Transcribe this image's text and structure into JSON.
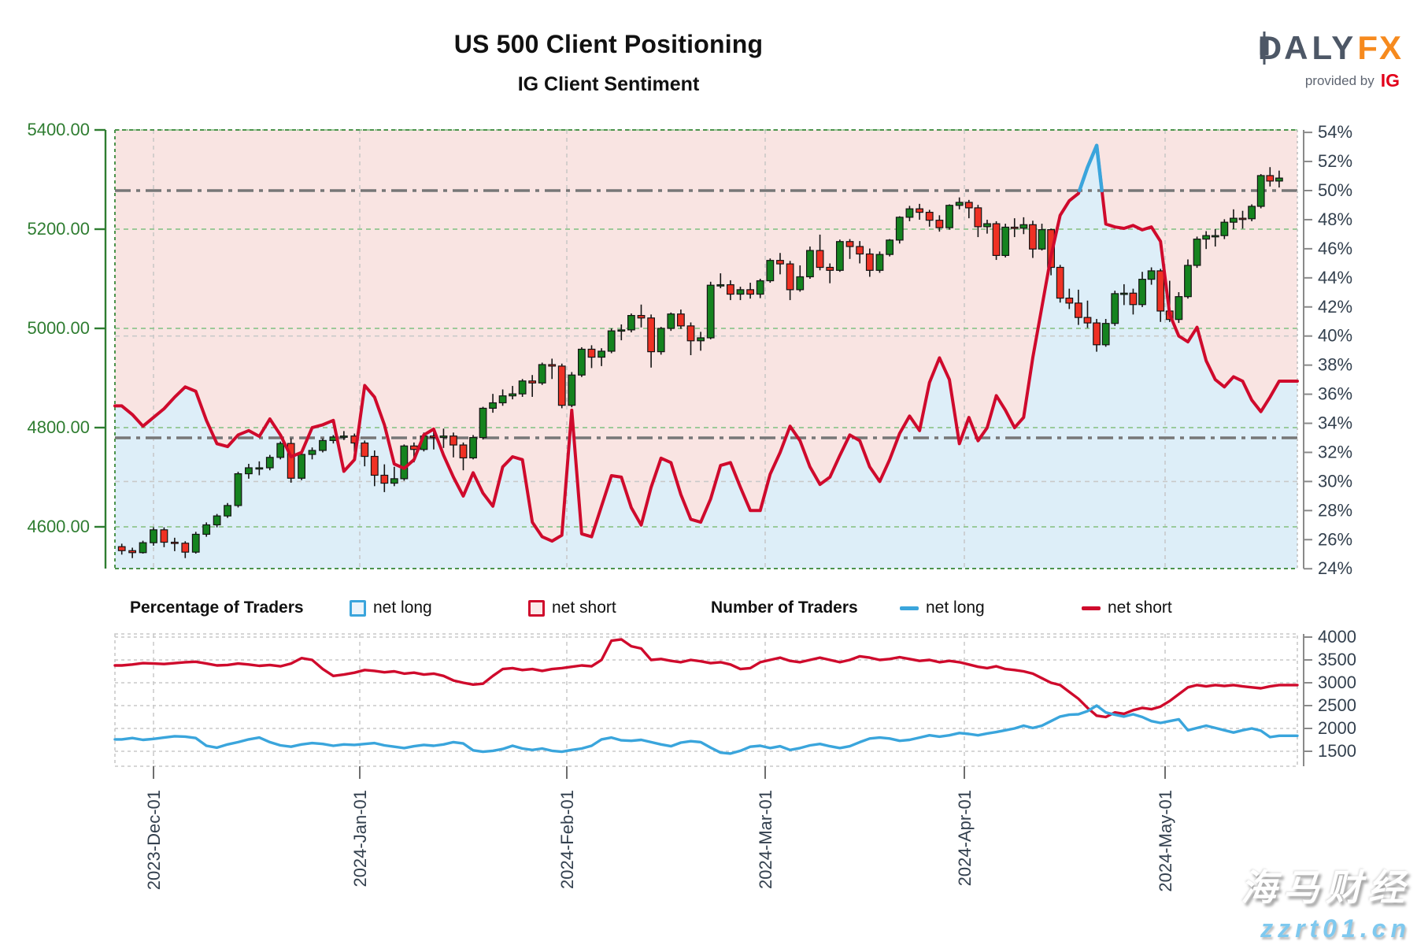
{
  "title": "US 500 Client Positioning",
  "subtitle": "IG Client Sentiment",
  "logo": {
    "brand_left": "DA",
    "brand_right": "LY",
    "brand_suffix": "FX",
    "provided_by": "provided by",
    "provider": "IG"
  },
  "legend": {
    "pct_header": "Percentage of Traders",
    "pct_net_long": "net long",
    "pct_net_short": "net short",
    "num_header": "Number of Traders",
    "num_net_long": "net long",
    "num_net_short": "net short"
  },
  "watermark": {
    "line1": "海马财经",
    "line2": "zzrt01.cn"
  },
  "colors": {
    "net_long_blue": "#3aa5dc",
    "net_short_red": "#cf0a2c",
    "candle_up": "#15831f",
    "candle_down": "#ef3124",
    "candle_stroke": "#141414",
    "price_axis_green": "#2f7d31",
    "grid_green": "#90c58f",
    "border_green": "#4c934c",
    "label_slate": "#33404e",
    "axis_gray": "#8a8a8a",
    "grid_light": "#c9c9c9",
    "refline_gray": "#777777",
    "fill_pink": "#f9e4e2",
    "fill_blue": "#ddeef8",
    "logo_orange": "#f68a1e",
    "logo_slate": "#4d5766",
    "ig_red": "#e2001a"
  },
  "chart_data": {
    "main": {
      "type": "candlestick+line",
      "title": "IG Client Sentiment",
      "price_axis": {
        "side": "left",
        "tick_values": [
          5400,
          5200,
          5000,
          4800,
          4600
        ],
        "tick_labels": [
          "5400.00",
          "5200.00",
          "5000.00",
          "4800.00",
          "4600.00"
        ],
        "range_top": 5400,
        "range_bottom": 4484
      },
      "pct_axis": {
        "side": "right",
        "tick_values": [
          54,
          52,
          50,
          48,
          46,
          44,
          42,
          40,
          38,
          36,
          34,
          32,
          30,
          28,
          26,
          24
        ],
        "tick_labels": [
          "54%",
          "52%",
          "50%",
          "48%",
          "46%",
          "44%",
          "42%",
          "40%",
          "38%",
          "36%",
          "34%",
          "32%",
          "30%",
          "28%",
          "26%",
          "24%"
        ],
        "reference_lines": [
          50,
          33
        ],
        "minor_lines": [
          40,
          30
        ],
        "threshold_pct": 50
      },
      "x_axis": {
        "month_labels": [
          "2023-Dec-01",
          "2024-Jan-01",
          "2024-Feb-01",
          "2024-Mar-01",
          "2024-Apr-01",
          "2024-May-01"
        ],
        "month_day_index": [
          3,
          22.5,
          43.5,
          63.5,
          83.5,
          105.5
        ]
      },
      "candles_ohlc": [
        [
          4560,
          4566,
          4544,
          4552
        ],
        [
          4552,
          4558,
          4537,
          4548
        ],
        [
          4548,
          4572,
          4546,
          4568
        ],
        [
          4568,
          4599,
          4562,
          4594
        ],
        [
          4594,
          4599,
          4559,
          4569
        ],
        [
          4569,
          4578,
          4551,
          4567
        ],
        [
          4567,
          4571,
          4537,
          4549
        ],
        [
          4549,
          4590,
          4546,
          4585
        ],
        [
          4585,
          4609,
          4580,
          4604
        ],
        [
          4604,
          4626,
          4599,
          4622
        ],
        [
          4622,
          4648,
          4618,
          4643
        ],
        [
          4643,
          4711,
          4639,
          4707
        ],
        [
          4707,
          4727,
          4697,
          4719
        ],
        [
          4719,
          4732,
          4704,
          4719
        ],
        [
          4719,
          4745,
          4714,
          4740
        ],
        [
          4740,
          4772,
          4736,
          4768
        ],
        [
          4768,
          4778,
          4689,
          4698
        ],
        [
          4698,
          4750,
          4694,
          4746
        ],
        [
          4746,
          4760,
          4736,
          4754
        ],
        [
          4754,
          4778,
          4750,
          4774
        ],
        [
          4774,
          4785,
          4768,
          4781
        ],
        [
          4781,
          4793,
          4775,
          4783
        ],
        [
          4783,
          4788,
          4751,
          4769
        ],
        [
          4769,
          4774,
          4722,
          4742
        ],
        [
          4742,
          4754,
          4682,
          4704
        ],
        [
          4704,
          4726,
          4670,
          4688
        ],
        [
          4688,
          4721,
          4682,
          4697
        ],
        [
          4697,
          4766,
          4693,
          4763
        ],
        [
          4763,
          4770,
          4730,
          4756
        ],
        [
          4756,
          4790,
          4752,
          4783
        ],
        [
          4783,
          4793,
          4756,
          4780
        ],
        [
          4780,
          4798,
          4759,
          4783
        ],
        [
          4783,
          4790,
          4740,
          4765
        ],
        [
          4765,
          4770,
          4714,
          4739
        ],
        [
          4739,
          4785,
          4736,
          4780
        ],
        [
          4780,
          4842,
          4776,
          4839
        ],
        [
          4839,
          4868,
          4830,
          4850
        ],
        [
          4850,
          4877,
          4844,
          4864
        ],
        [
          4864,
          4884,
          4857,
          4868
        ],
        [
          4868,
          4898,
          4862,
          4894
        ],
        [
          4894,
          4906,
          4862,
          4890
        ],
        [
          4890,
          4931,
          4886,
          4927
        ],
        [
          4927,
          4939,
          4898,
          4924
        ],
        [
          4924,
          4929,
          4839,
          4845
        ],
        [
          4845,
          4912,
          4841,
          4906
        ],
        [
          4906,
          4962,
          4902,
          4958
        ],
        [
          4958,
          4966,
          4920,
          4942
        ],
        [
          4942,
          4960,
          4924,
          4954
        ],
        [
          4954,
          5000,
          4950,
          4995
        ],
        [
          4995,
          5008,
          4976,
          4997
        ],
        [
          4997,
          5030,
          4992,
          5026
        ],
        [
          5026,
          5048,
          5002,
          5021
        ],
        [
          5021,
          5028,
          4921,
          4953
        ],
        [
          4953,
          5003,
          4947,
          5000
        ],
        [
          5000,
          5032,
          4995,
          5029
        ],
        [
          5029,
          5038,
          4999,
          5005
        ],
        [
          5005,
          5012,
          4946,
          4975
        ],
        [
          4975,
          4993,
          4955,
          4981
        ],
        [
          4981,
          5094,
          4978,
          5087
        ],
        [
          5087,
          5111,
          5081,
          5088
        ],
        [
          5088,
          5097,
          5057,
          5069
        ],
        [
          5069,
          5084,
          5057,
          5078
        ],
        [
          5078,
          5092,
          5060,
          5069
        ],
        [
          5069,
          5100,
          5061,
          5096
        ],
        [
          5096,
          5141,
          5092,
          5137
        ],
        [
          5137,
          5152,
          5109,
          5130
        ],
        [
          5130,
          5136,
          5057,
          5078
        ],
        [
          5078,
          5127,
          5074,
          5104
        ],
        [
          5104,
          5165,
          5100,
          5157
        ],
        [
          5157,
          5189,
          5117,
          5123
        ],
        [
          5123,
          5131,
          5091,
          5117
        ],
        [
          5117,
          5179,
          5114,
          5175
        ],
        [
          5175,
          5180,
          5140,
          5165
        ],
        [
          5165,
          5176,
          5131,
          5150
        ],
        [
          5150,
          5161,
          5104,
          5117
        ],
        [
          5117,
          5155,
          5112,
          5149
        ],
        [
          5149,
          5180,
          5145,
          5178
        ],
        [
          5178,
          5226,
          5171,
          5224
        ],
        [
          5224,
          5247,
          5216,
          5241
        ],
        [
          5241,
          5251,
          5219,
          5234
        ],
        [
          5234,
          5239,
          5205,
          5218
        ],
        [
          5218,
          5228,
          5195,
          5203
        ],
        [
          5203,
          5250,
          5199,
          5248
        ],
        [
          5248,
          5264,
          5240,
          5254
        ],
        [
          5254,
          5259,
          5222,
          5243
        ],
        [
          5243,
          5249,
          5184,
          5205
        ],
        [
          5205,
          5219,
          5191,
          5211
        ],
        [
          5211,
          5216,
          5138,
          5147
        ],
        [
          5147,
          5211,
          5143,
          5204
        ],
        [
          5204,
          5222,
          5184,
          5202
        ],
        [
          5202,
          5224,
          5190,
          5209
        ],
        [
          5209,
          5217,
          5142,
          5160
        ],
        [
          5160,
          5211,
          5157,
          5199
        ],
        [
          5199,
          5201,
          5107,
          5123
        ],
        [
          5123,
          5128,
          5052,
          5061
        ],
        [
          5061,
          5080,
          5039,
          5051
        ],
        [
          5051,
          5078,
          5007,
          5022
        ],
        [
          5022,
          5056,
          5001,
          5011
        ],
        [
          5011,
          5019,
          4953,
          4967
        ],
        [
          4967,
          5019,
          4963,
          5010
        ],
        [
          5010,
          5076,
          5005,
          5070
        ],
        [
          5070,
          5089,
          5047,
          5071
        ],
        [
          5071,
          5080,
          5028,
          5048
        ],
        [
          5048,
          5114,
          5043,
          5099
        ],
        [
          5099,
          5123,
          5088,
          5116
        ],
        [
          5116,
          5120,
          5013,
          5035
        ],
        [
          5035,
          5096,
          5013,
          5018
        ],
        [
          5018,
          5073,
          5011,
          5064
        ],
        [
          5064,
          5139,
          5060,
          5127
        ],
        [
          5127,
          5185,
          5122,
          5180
        ],
        [
          5180,
          5196,
          5160,
          5187
        ],
        [
          5187,
          5200,
          5165,
          5187
        ],
        [
          5187,
          5220,
          5180,
          5214
        ],
        [
          5214,
          5240,
          5200,
          5222
        ],
        [
          5222,
          5237,
          5201,
          5221
        ],
        [
          5221,
          5250,
          5216,
          5246
        ],
        [
          5246,
          5311,
          5242,
          5308
        ],
        [
          5308,
          5325,
          5286,
          5297
        ],
        [
          5297,
          5318,
          5284,
          5303
        ]
      ],
      "sentiment_net_long_pct": [
        35.2,
        34.6,
        33.8,
        34.4,
        35.0,
        35.8,
        36.5,
        36.2,
        34.2,
        32.6,
        32.4,
        33.2,
        33.5,
        33.1,
        34.3,
        33.2,
        31.7,
        32.0,
        33.7,
        33.9,
        34.2,
        30.7,
        31.5,
        36.6,
        35.8,
        33.9,
        31.2,
        30.9,
        31.5,
        33.2,
        33.6,
        31.8,
        30.3,
        29.0,
        30.6,
        29.2,
        28.3,
        31.0,
        31.7,
        31.5,
        27.2,
        26.2,
        25.9,
        26.3,
        34.9,
        26.4,
        26.2,
        28.3,
        30.4,
        30.3,
        28.2,
        27.0,
        29.6,
        31.6,
        31.3,
        29.1,
        27.4,
        27.2,
        28.8,
        31.1,
        31.3,
        29.6,
        28.0,
        28.0,
        30.5,
        32.0,
        33.8,
        32.8,
        31.0,
        29.8,
        30.3,
        31.8,
        33.2,
        32.8,
        31.0,
        30.0,
        31.5,
        33.3,
        34.5,
        33.5,
        36.8,
        38.5,
        37.0,
        32.6,
        34.4,
        32.8,
        33.7,
        35.9,
        34.9,
        33.7,
        34.4,
        38.5,
        42.0,
        45.5,
        48.3,
        49.3,
        49.8,
        51.6,
        53.1,
        47.7,
        47.5,
        47.4,
        47.6,
        47.3,
        47.5,
        46.5,
        41.5,
        40.0,
        39.6,
        40.6,
        38.3,
        37.0,
        36.5,
        37.2,
        36.9,
        35.6,
        34.8,
        35.8,
        36.9
      ]
    },
    "traders": {
      "type": "line",
      "y_tick_values": [
        4000,
        3500,
        3000,
        2500,
        2000,
        1500
      ],
      "y_tick_labels": [
        "4000",
        "3500",
        "3000",
        "2500",
        "2000",
        "1500"
      ],
      "series": [
        {
          "name": "net short",
          "values": [
            3380,
            3400,
            3430,
            3420,
            3410,
            3430,
            3450,
            3460,
            3420,
            3380,
            3390,
            3420,
            3400,
            3370,
            3390,
            3360,
            3420,
            3540,
            3500,
            3300,
            3150,
            3180,
            3220,
            3280,
            3260,
            3230,
            3250,
            3200,
            3220,
            3180,
            3200,
            3150,
            3050,
            3000,
            2960,
            2980,
            3150,
            3300,
            3320,
            3280,
            3300,
            3260,
            3300,
            3320,
            3350,
            3380,
            3360,
            3500,
            3920,
            3950,
            3800,
            3750,
            3500,
            3520,
            3480,
            3450,
            3500,
            3470,
            3430,
            3450,
            3400,
            3300,
            3320,
            3450,
            3500,
            3550,
            3480,
            3450,
            3500,
            3550,
            3500,
            3450,
            3500,
            3580,
            3550,
            3500,
            3520,
            3560,
            3520,
            3480,
            3500,
            3450,
            3480,
            3450,
            3400,
            3350,
            3320,
            3360,
            3300,
            3280,
            3250,
            3200,
            3100,
            3000,
            2950,
            2800,
            2650,
            2450,
            2280,
            2250,
            2350,
            2320,
            2400,
            2450,
            2420,
            2480,
            2600,
            2750,
            2900,
            2950,
            2920,
            2950,
            2930,
            2950,
            2920,
            2900,
            2880,
            2920,
            2950
          ]
        },
        {
          "name": "net long",
          "values": [
            1760,
            1790,
            1750,
            1770,
            1800,
            1830,
            1820,
            1790,
            1620,
            1580,
            1650,
            1700,
            1760,
            1800,
            1700,
            1630,
            1600,
            1650,
            1680,
            1660,
            1620,
            1650,
            1640,
            1660,
            1680,
            1630,
            1600,
            1570,
            1610,
            1640,
            1620,
            1650,
            1700,
            1670,
            1520,
            1490,
            1510,
            1550,
            1620,
            1560,
            1530,
            1560,
            1510,
            1490,
            1530,
            1560,
            1620,
            1760,
            1800,
            1740,
            1730,
            1750,
            1700,
            1650,
            1610,
            1690,
            1720,
            1700,
            1580,
            1470,
            1450,
            1510,
            1600,
            1620,
            1570,
            1610,
            1530,
            1570,
            1630,
            1660,
            1610,
            1570,
            1610,
            1700,
            1780,
            1800,
            1780,
            1730,
            1750,
            1800,
            1850,
            1820,
            1850,
            1900,
            1880,
            1850,
            1890,
            1920,
            1960,
            2000,
            2060,
            2010,
            2060,
            2160,
            2260,
            2300,
            2310,
            2380,
            2500,
            2350,
            2300,
            2260,
            2310,
            2250,
            2160,
            2120,
            2160,
            2200,
            1960,
            2010,
            2060,
            2010,
            1960,
            1910,
            1960,
            2000,
            1950,
            1810,
            1840
          ]
        }
      ]
    }
  }
}
